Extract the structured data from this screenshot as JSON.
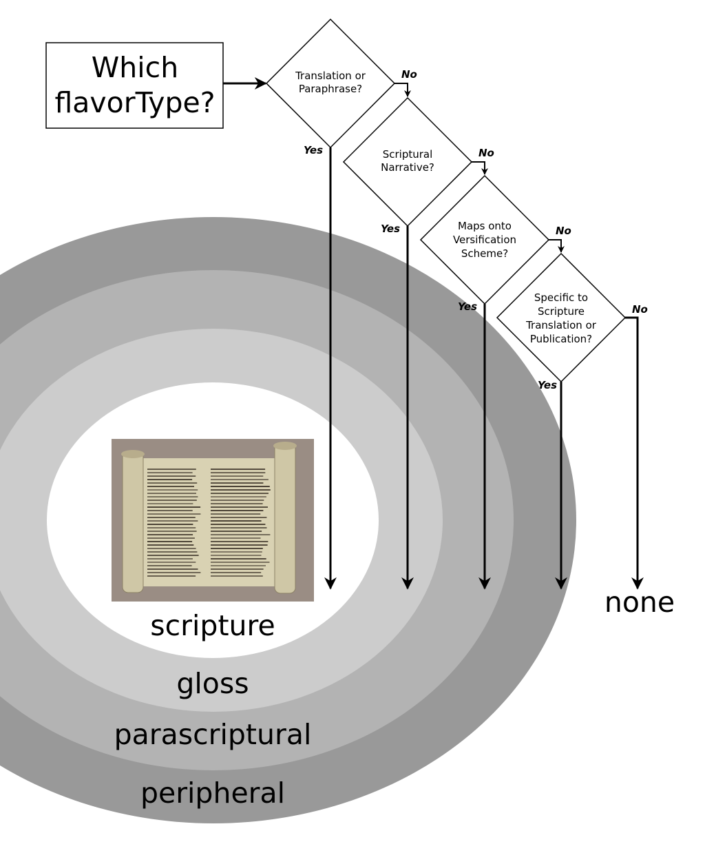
{
  "start": {
    "lines": [
      "Which",
      "flavorType?"
    ]
  },
  "questions": [
    {
      "lines": [
        "Translation or",
        "Paraphrase?"
      ],
      "yes": "Yes",
      "no": "No"
    },
    {
      "lines": [
        "Scriptural",
        "Narrative?"
      ],
      "yes": "Yes",
      "no": "No"
    },
    {
      "lines": [
        "Maps onto",
        "Versification",
        "Scheme?"
      ],
      "yes": "Yes",
      "no": "No"
    },
    {
      "lines": [
        "Specific to",
        "Scripture",
        "Translation or",
        "Publication?"
      ],
      "yes": "Yes",
      "no": "No"
    }
  ],
  "categories": {
    "scripture": "scripture",
    "gloss": "gloss",
    "parascriptural": "parascriptural",
    "peripheral": "peripheral",
    "none": "none"
  },
  "colors": {
    "ring_peripheral": "#999999",
    "ring_parascriptural": "#b3b3b3",
    "ring_gloss": "#cccccc",
    "ring_scripture": "#ffffff",
    "scroll_background": "#9a8d84",
    "scroll_parchment": "#d9d2b3",
    "scroll_ink": "#3a3126"
  },
  "image": {
    "icon": "scripture-scroll-picture"
  }
}
